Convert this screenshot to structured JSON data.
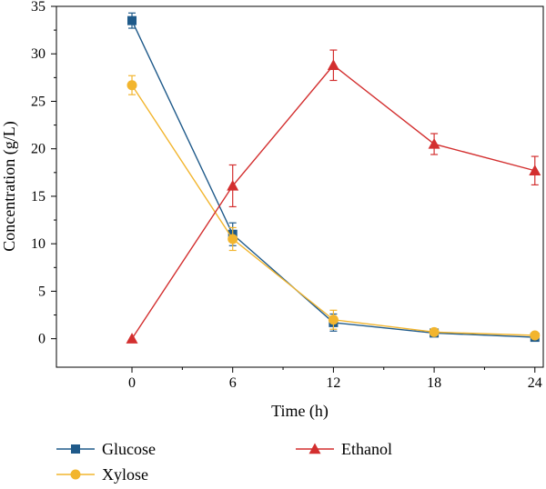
{
  "chart_data": {
    "type": "line",
    "xlabel": "Time (h)",
    "ylabel": "Concentration (g/L)",
    "xlim": [
      -4.5,
      24.5
    ],
    "ylim": [
      -3,
      35
    ],
    "x_ticks": [
      0,
      6,
      12,
      18,
      24
    ],
    "y_ticks": [
      0,
      5,
      10,
      15,
      20,
      25,
      30,
      35
    ],
    "x": [
      0,
      6,
      12,
      18,
      24
    ],
    "legend_position": "below",
    "series": [
      {
        "name": "Glucose",
        "marker": "square",
        "color": "#1f5a8a",
        "values": [
          33.5,
          11.0,
          1.7,
          0.6,
          0.15
        ],
        "errors": [
          0.8,
          1.2,
          0.9,
          0.3,
          0.2
        ]
      },
      {
        "name": "Xylose",
        "marker": "circle",
        "color": "#f2b52e",
        "values": [
          26.7,
          10.5,
          2.0,
          0.7,
          0.35
        ],
        "errors": [
          1.0,
          1.2,
          1.0,
          0.3,
          0.2
        ]
      },
      {
        "name": "Ethanol",
        "marker": "triangle",
        "color": "#d32f2f",
        "values": [
          0,
          16.1,
          28.8,
          20.5,
          17.7
        ],
        "errors": [
          0,
          2.2,
          1.6,
          1.1,
          1.5
        ]
      }
    ]
  }
}
